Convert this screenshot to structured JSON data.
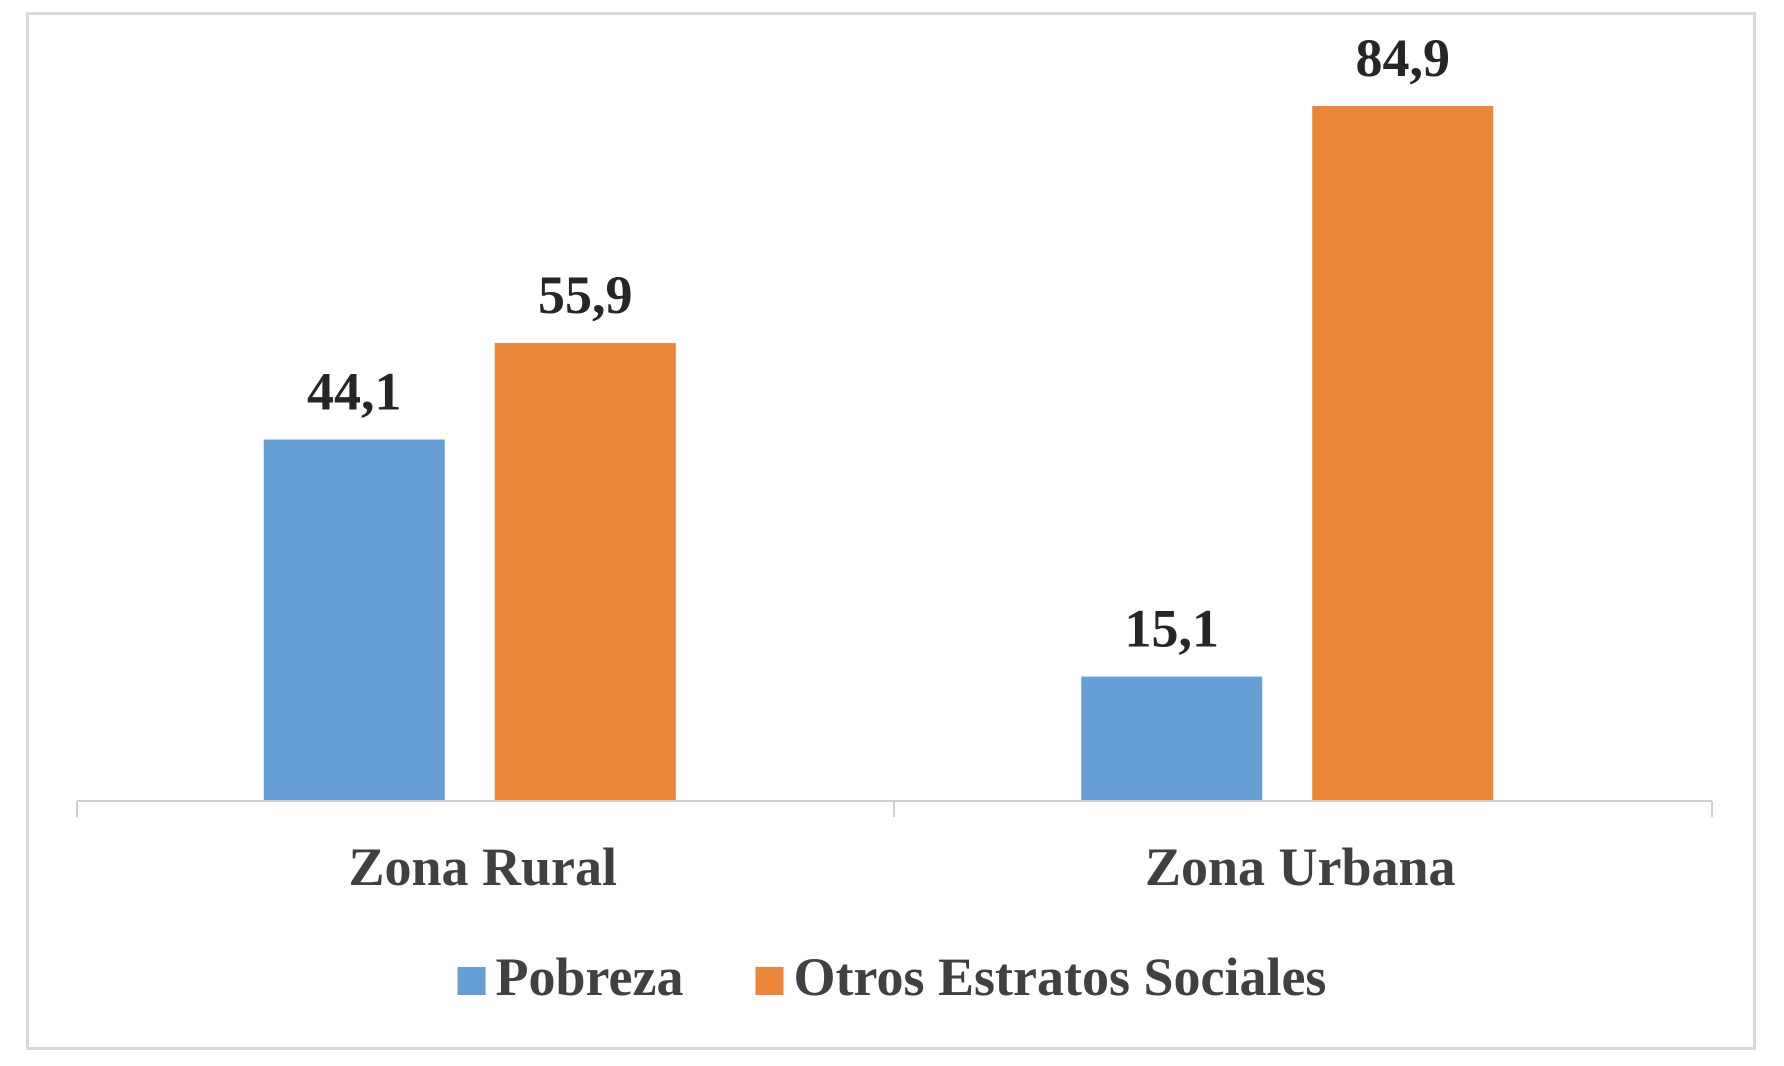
{
  "chart_data": {
    "type": "bar",
    "categories": [
      "Zona Rural",
      "Zona Urbana"
    ],
    "series": [
      {
        "name": "Pobreza",
        "values": [
          44.1,
          15.1
        ],
        "labels": [
          "44,1",
          "15,1"
        ],
        "color": "#659fd6"
      },
      {
        "name": "Otros Estratos Sociales",
        "values": [
          55.9,
          84.9
        ],
        "labels": [
          "55,9",
          "84,9"
        ],
        "color": "#eb8638"
      }
    ],
    "title": "",
    "xlabel": "",
    "ylabel": "",
    "ylim": [
      0,
      100
    ],
    "grid": false,
    "legend_position": "bottom"
  }
}
